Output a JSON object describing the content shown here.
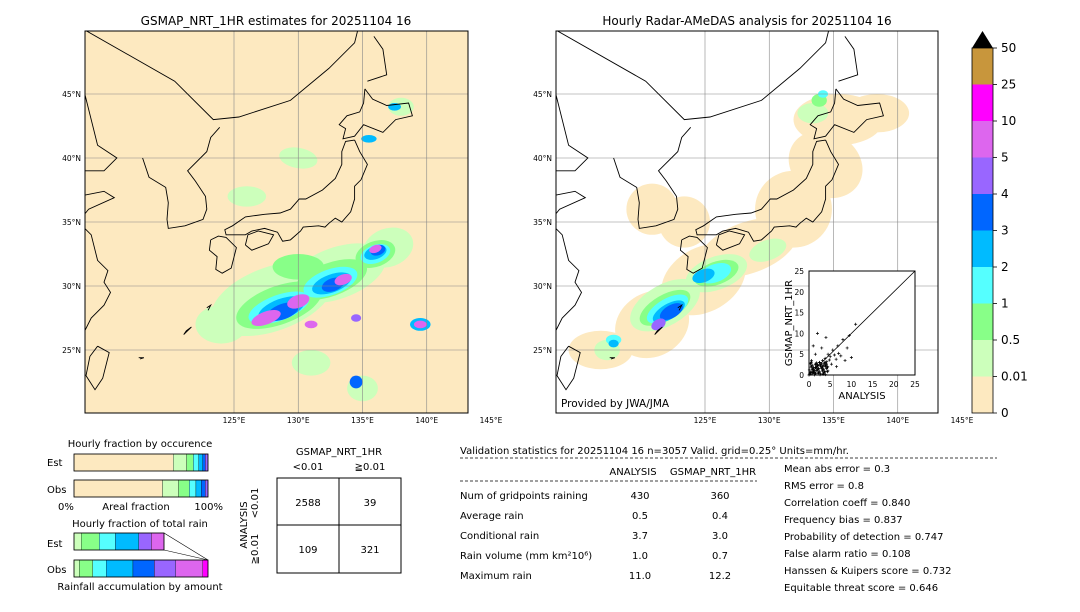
{
  "maps": {
    "left_title": "GSMAP_NRT_1HR estimates for 20251104 16",
    "right_title": "Hourly Radar-AMeDAS analysis for 20251104 16",
    "lat_labels": [
      "45°N",
      "40°N",
      "35°N",
      "30°N",
      "25°N"
    ],
    "lon_labels": [
      "125°E",
      "130°E",
      "135°E",
      "140°E",
      "145°E"
    ],
    "credit": "Provided by JWA/JMA"
  },
  "colorbar": {
    "ticks": [
      "50",
      "25",
      "10",
      "5",
      "4",
      "3",
      "2",
      "1",
      "0.5",
      "0.01",
      "0"
    ],
    "colors": [
      "#c8963c",
      "#ff00ff",
      "#dd66ee",
      "#9966ff",
      "#0066ff",
      "#00bbff",
      "#55ffff",
      "#88ff88",
      "#ccffbb",
      "#fde9c0"
    ]
  },
  "scatter": {
    "xlabel": "ANALYSIS",
    "ylabel": "GSMAP_NRT_1HR",
    "ticks": [
      "0",
      "5",
      "10",
      "15",
      "20",
      "25"
    ]
  },
  "occurrence": {
    "title": "Hourly fraction by occurence",
    "row_est": "Est",
    "row_obs": "Obs",
    "axis_left": "0%",
    "axis_mid": "Areal fraction",
    "axis_right": "100%"
  },
  "total_rain": {
    "title": "Hourly fraction of total rain",
    "row_est": "Est",
    "row_obs": "Obs",
    "axis_label": "Rainfall accumulation by amount"
  },
  "contingency": {
    "title": "GSMAP_NRT_1HR",
    "col_lt": "<0.01",
    "col_ge": "≧0.01",
    "row_axis": "ANALYSIS",
    "row_lt": "<0.01",
    "row_ge": "≧0.01",
    "cells": [
      "2588",
      "39",
      "109",
      "321"
    ]
  },
  "validation": {
    "header": "Validation statistics for 20251104 16  n=3057 Valid. grid=0.25° Units=mm/hr.",
    "col_analysis": "ANALYSIS",
    "col_gsmap": "GSMAP_NRT_1HR",
    "rows": [
      {
        "label": "Num of gridpoints raining",
        "a": "430",
        "g": "360"
      },
      {
        "label": "Average rain",
        "a": "0.5",
        "g": "0.4"
      },
      {
        "label": "Conditional rain",
        "a": "3.7",
        "g": "3.0"
      },
      {
        "label": "Rain volume (mm km²10⁶)",
        "a": "1.0",
        "g": "0.7"
      },
      {
        "label": "Maximum rain",
        "a": "11.0",
        "g": "12.2"
      }
    ],
    "scores": [
      "Mean abs error =    0.3",
      "RMS error =    0.8",
      "Correlation coeff =  0.840",
      "Frequency bias =  0.837",
      "Probability of detection =  0.747",
      "False alarm ratio =  0.108",
      "Hanssen & Kuipers score =  0.732",
      "Equitable threat score =  0.646"
    ]
  },
  "chart_data": [
    {
      "type": "heatmap",
      "title": "GSMAP_NRT_1HR estimates for 20251104 16",
      "x_ticks": [
        "125°E",
        "130°E",
        "135°E",
        "140°E",
        "145°E"
      ],
      "y_ticks": [
        "45°N",
        "40°N",
        "35°N",
        "30°N",
        "25°N"
      ]
    },
    {
      "type": "heatmap",
      "title": "Hourly Radar-AMeDAS analysis for 20251104 16",
      "x_ticks": [
        "125°E",
        "130°E",
        "135°E",
        "140°E",
        "145°E"
      ],
      "y_ticks": [
        "45°N",
        "40°N",
        "35°N",
        "30°N",
        "25°N"
      ]
    },
    {
      "type": "scatter",
      "xlabel": "ANALYSIS",
      "ylabel": "GSMAP_NRT_1HR",
      "xlim": [
        0,
        25
      ],
      "ylim": [
        0,
        25
      ],
      "points": [
        [
          0.3,
          0.2
        ],
        [
          0.5,
          0.8
        ],
        [
          0.8,
          0.4
        ],
        [
          1.0,
          1.2
        ],
        [
          1.2,
          0.6
        ],
        [
          1.5,
          1.8
        ],
        [
          1.8,
          1.1
        ],
        [
          2.0,
          2.5
        ],
        [
          2.2,
          1.4
        ],
        [
          2.5,
          3.0
        ],
        [
          2.8,
          2.0
        ],
        [
          3.0,
          1.6
        ],
        [
          3.2,
          3.5
        ],
        [
          3.5,
          2.4
        ],
        [
          3.8,
          4.0
        ],
        [
          4.0,
          2.8
        ],
        [
          4.2,
          3.2
        ],
        [
          4.5,
          5.0
        ],
        [
          4.8,
          3.6
        ],
        [
          5.0,
          4.4
        ],
        [
          5.3,
          2.6
        ],
        [
          5.6,
          6.0
        ],
        [
          6.0,
          4.8
        ],
        [
          6.4,
          3.8
        ],
        [
          6.8,
          7.0
        ],
        [
          7.0,
          5.2
        ],
        [
          7.5,
          4.6
        ],
        [
          8.0,
          8.5
        ],
        [
          8.5,
          3.5
        ],
        [
          9.0,
          6.5
        ],
        [
          10.0,
          4.2
        ],
        [
          11.0,
          12.2
        ],
        [
          1.0,
          7.0
        ],
        [
          2.0,
          10.0
        ],
        [
          0.6,
          3.5
        ],
        [
          3.0,
          6.5
        ],
        [
          4.0,
          9.0
        ],
        [
          1.5,
          5.0
        ],
        [
          6.5,
          2.0
        ],
        [
          9.5,
          9.5
        ]
      ]
    }
  ]
}
